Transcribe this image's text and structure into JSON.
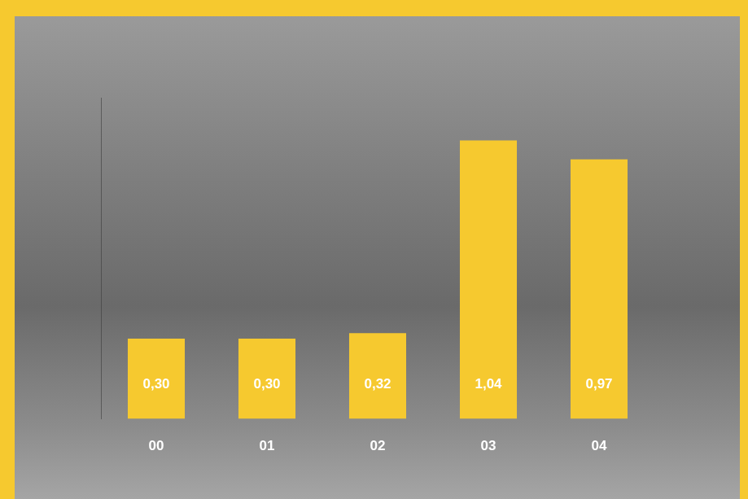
{
  "chart_data": {
    "type": "bar",
    "categories": [
      "00",
      "01",
      "02",
      "03",
      "04"
    ],
    "values": [
      0.3,
      0.3,
      0.32,
      1.04,
      0.97
    ],
    "value_labels": [
      "0,30",
      "0,30",
      "0,32",
      "1,04",
      "0,97"
    ],
    "data_labels": true,
    "color": "#f6c92f",
    "ylim": [
      0,
      1.2
    ],
    "tick_labels": "x",
    "grid": false
  }
}
